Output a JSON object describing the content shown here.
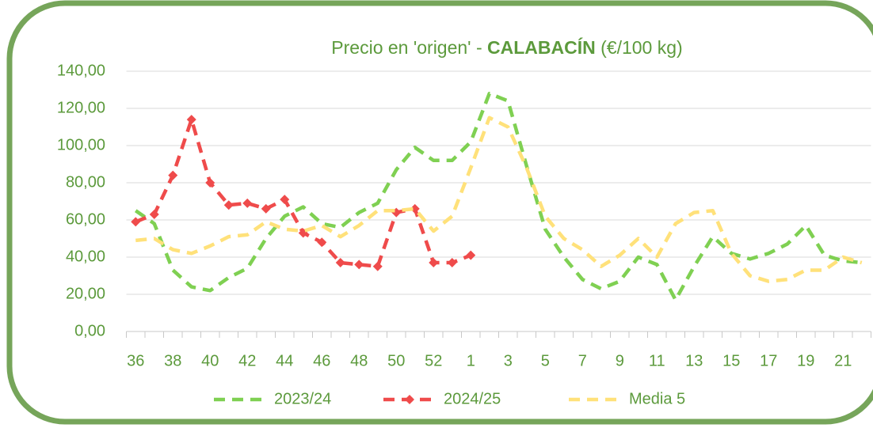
{
  "chart_data": {
    "type": "line",
    "title": [
      "Precio en 'origen' - ",
      "CALABACÍN",
      " (€/100 kg)"
    ],
    "categories": [
      "36",
      null,
      "38",
      null,
      "40",
      null,
      "42",
      null,
      "44",
      null,
      "46",
      null,
      "48",
      null,
      "50",
      null,
      "52",
      null,
      "1",
      null,
      "3",
      null,
      "5",
      null,
      "7",
      null,
      "9",
      null,
      "11",
      null,
      "13",
      null,
      "15",
      null,
      "17",
      null,
      "19",
      null,
      "21",
      null
    ],
    "series": [
      {
        "name": "2023/24",
        "color": "#7fd052",
        "marker": false,
        "values": [
          65,
          58,
          33,
          24,
          22,
          29,
          34,
          50,
          62,
          67,
          58,
          56,
          64,
          69,
          87,
          99,
          92,
          92,
          102,
          128,
          124,
          89,
          55,
          40,
          28,
          23,
          27,
          40,
          36,
          17,
          35,
          51,
          42,
          39,
          42,
          47,
          57,
          41,
          38,
          37
        ]
      },
      {
        "name": "2024/25",
        "color": "#ef4b4b",
        "marker": true,
        "values": [
          59,
          63,
          84,
          114,
          80,
          68,
          69,
          66,
          71,
          53,
          48,
          37,
          36,
          35,
          64,
          66,
          37,
          37,
          41,
          null,
          null,
          null,
          null,
          null,
          null,
          null,
          null,
          null,
          null,
          null,
          null,
          null,
          null,
          null,
          null,
          null,
          null,
          null,
          null,
          null
        ]
      },
      {
        "name": "Media 5",
        "color": "#ffe17a",
        "marker": false,
        "values": [
          49,
          50,
          44,
          42,
          46,
          51,
          52,
          59,
          55,
          54,
          57,
          51,
          57,
          65,
          65,
          66,
          54,
          62,
          88,
          115,
          110,
          88,
          62,
          50,
          44,
          35,
          41,
          50,
          40,
          58,
          64,
          65,
          42,
          30,
          27,
          28,
          33,
          33,
          40,
          37
        ]
      }
    ],
    "ylim": [
      0,
      140
    ],
    "yticks": [
      {
        "value": 0,
        "label": "0,00"
      },
      {
        "value": 20,
        "label": "20,00"
      },
      {
        "value": 40,
        "label": "40,00"
      },
      {
        "value": 60,
        "label": "60,00"
      },
      {
        "value": 80,
        "label": "80,00"
      },
      {
        "value": 100,
        "label": "100,00"
      },
      {
        "value": 120,
        "label": "120,00"
      },
      {
        "value": 140,
        "label": "140,00"
      }
    ],
    "grid": true
  }
}
